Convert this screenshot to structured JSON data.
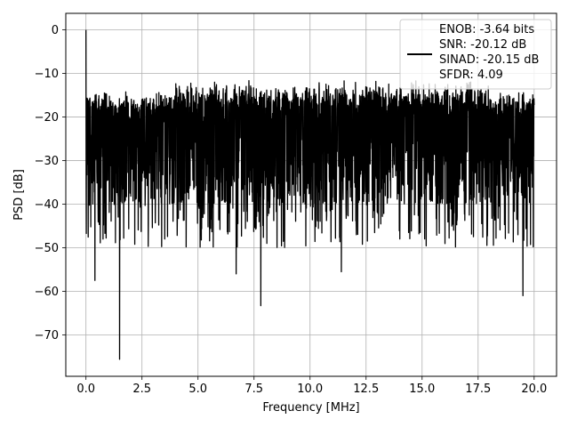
{
  "chart_data": {
    "type": "line",
    "title": "",
    "xlabel": "Frequency [MHz]",
    "ylabel": "PSD [dB]",
    "xlim": [
      -0.9,
      21.0
    ],
    "ylim": [
      -79.5,
      3.8
    ],
    "xticks": [
      0.0,
      2.5,
      5.0,
      7.5,
      10.0,
      12.5,
      15.0,
      17.5,
      20.0
    ],
    "xtick_labels": [
      "0.0",
      "2.5",
      "5.0",
      "7.5",
      "10.0",
      "12.5",
      "15.0",
      "17.5",
      "20.0"
    ],
    "yticks": [
      0,
      -10,
      -20,
      -30,
      -40,
      -50,
      -60,
      -70
    ],
    "ytick_labels": [
      "0",
      "−10",
      "−20",
      "−30",
      "−40",
      "−50",
      "−60",
      "−70"
    ],
    "grid": true,
    "legend_position": "top-right",
    "series": [
      {
        "name": "ENOB: -3.64 bits\nSNR: -20.12 dB\nSINAD: -20.15 dB\nSFDR: 4.09",
        "color": "#000000",
        "x_range": [
          0.0,
          20.0
        ],
        "noise_band_db": [
          -20,
          -40
        ],
        "notable_points": [
          {
            "x": 0.0,
            "y": 0.0
          },
          {
            "x": 1.5,
            "y": -75.6
          },
          {
            "x": 7.8,
            "y": -63.3
          },
          {
            "x": 19.5,
            "y": -61.0
          },
          {
            "x": 11.4,
            "y": -55.5
          },
          {
            "x": 6.7,
            "y": -56.0
          },
          {
            "x": 0.4,
            "y": -57.5
          }
        ]
      }
    ]
  }
}
